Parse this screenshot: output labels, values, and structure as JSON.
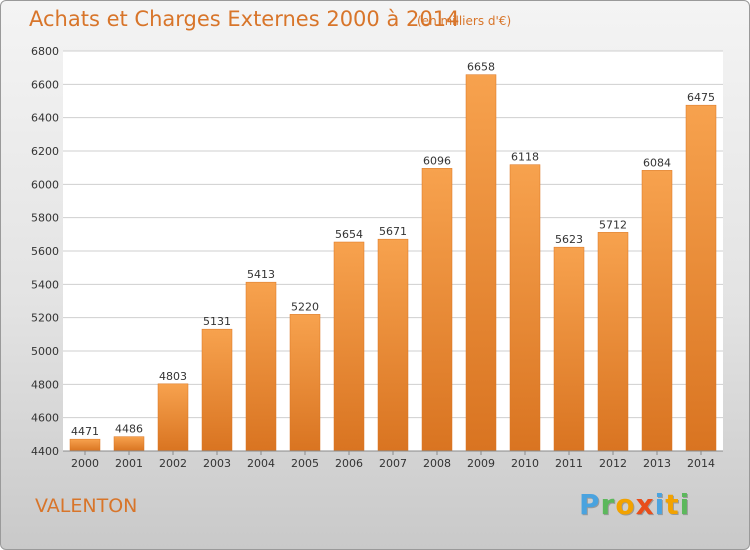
{
  "chart_data": {
    "type": "bar",
    "title": "Achats et Charges Externes 2000 à 2014",
    "subtitle": "(en milliers d'€)",
    "categories": [
      "2000",
      "2001",
      "2002",
      "2003",
      "2004",
      "2005",
      "2006",
      "2007",
      "2008",
      "2009",
      "2010",
      "2011",
      "2012",
      "2013",
      "2014"
    ],
    "values": [
      4471,
      4486,
      4803,
      5131,
      5413,
      5220,
      5654,
      5671,
      6096,
      6658,
      6118,
      5623,
      5712,
      6084,
      6475
    ],
    "ylim": [
      4400,
      6800
    ],
    "yticks": [
      4400,
      4600,
      4800,
      5000,
      5200,
      5400,
      5600,
      5800,
      6000,
      6200,
      6400,
      6600,
      6800
    ],
    "grid": true,
    "bar_color": "#f0953a",
    "bar_color_dark": "#d97421"
  },
  "place": "VALENTON",
  "logo": {
    "letters": [
      "P",
      "r",
      "o",
      "x",
      "i",
      "t",
      "i"
    ],
    "colors": [
      "#4aa3df",
      "#5cb85c",
      "#f2a200",
      "#e94e1b",
      "#4aa3df",
      "#f2a200",
      "#5cb85c"
    ]
  }
}
